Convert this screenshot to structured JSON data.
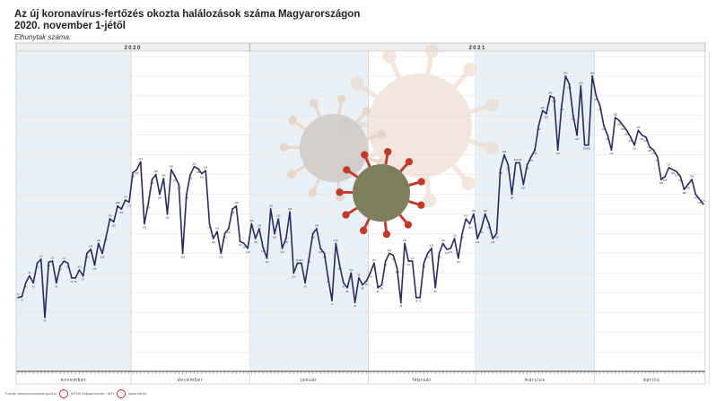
{
  "header": {
    "title_line1": "Az új koronavírus-fertőzés okozta halálozások száma Magyarországon",
    "title_line2": "2020. november 1-jétől",
    "y_axis_label": "Elhunytak száma:"
  },
  "footer": {
    "source": "Forrás: www.koronavirus.gov.hu",
    "credit": "MTVA Sajtóarchívum · MTI",
    "site": "www.mti.hu"
  },
  "colors": {
    "line": "#2b2a5c",
    "band_shade": "#e9f1f7",
    "year_bar": "#eeeeee",
    "virus_red": "#c0392b",
    "virus_grey": "#cfc8c4",
    "virus_green": "#7d7f5c",
    "virus_peach": "#e8d3c4"
  },
  "chart_data": {
    "type": "line",
    "title": "Az új koronavírus-fertőzés okozta halálozások száma Magyarországon",
    "subtitle": "2020. november 1-jétől",
    "ylabel": "Elhunytak száma:",
    "ylim": [
      0,
      320
    ],
    "grid": true,
    "years": [
      "2020",
      "2021"
    ],
    "month_labels": [
      "november",
      "december",
      "január",
      "február",
      "március",
      "április"
    ],
    "month_lengths": [
      30,
      31,
      31,
      28,
      31,
      30
    ],
    "x_start": "2020-11-01",
    "series": [
      {
        "values": [
          75,
          76,
          90,
          97,
          90,
          110,
          114,
          55,
          111,
          112,
          90,
          107,
          112,
          110,
          95,
          95,
          103,
          97,
          120,
          124,
          108,
          130,
          120,
          137,
          155,
          152,
          168,
          165,
          174,
          172,
          202,
          205,
          213,
          150,
          170,
          195,
          200,
          180,
          196,
          160,
          205,
          198,
          190,
          120,
          180,
          200,
          208,
          206,
          201,
          204,
          150,
          135,
          142,
          120,
          140,
          145,
          165,
          168,
          132,
          130,
          125,
          150,
          135,
          145,
          126,
          115,
          165,
          140,
          155,
          125,
          135,
          162,
          100,
          110,
          110,
          90,
          115,
          140,
          145,
          125,
          120,
          95,
          72,
          130,
          108,
          90,
          85,
          100,
          70,
          95,
          88,
          92,
          100,
          110,
          85,
          88,
          112,
          120,
          118,
          105,
          70,
          130,
          112,
          112,
          75,
          75,
          110,
          120,
          125,
          85,
          120,
          130,
          124,
          125,
          135,
          115,
          140,
          155,
          150,
          160,
          135,
          145,
          160,
          150,
          135,
          140,
          205,
          220,
          210,
          180,
          212,
          212,
          190,
          210,
          218,
          225,
          250,
          265,
          262,
          280,
          278,
          225,
          270,
          300,
          292,
          260,
          240,
          290,
          230,
          230,
          300,
          280,
          270,
          250,
          240,
          225,
          258,
          255,
          250,
          245,
          238,
          230,
          245,
          240,
          238,
          228,
          225,
          218,
          195,
          198,
          207,
          205,
          203,
          198,
          185,
          190,
          195,
          180,
          175,
          170
        ]
      }
    ]
  }
}
